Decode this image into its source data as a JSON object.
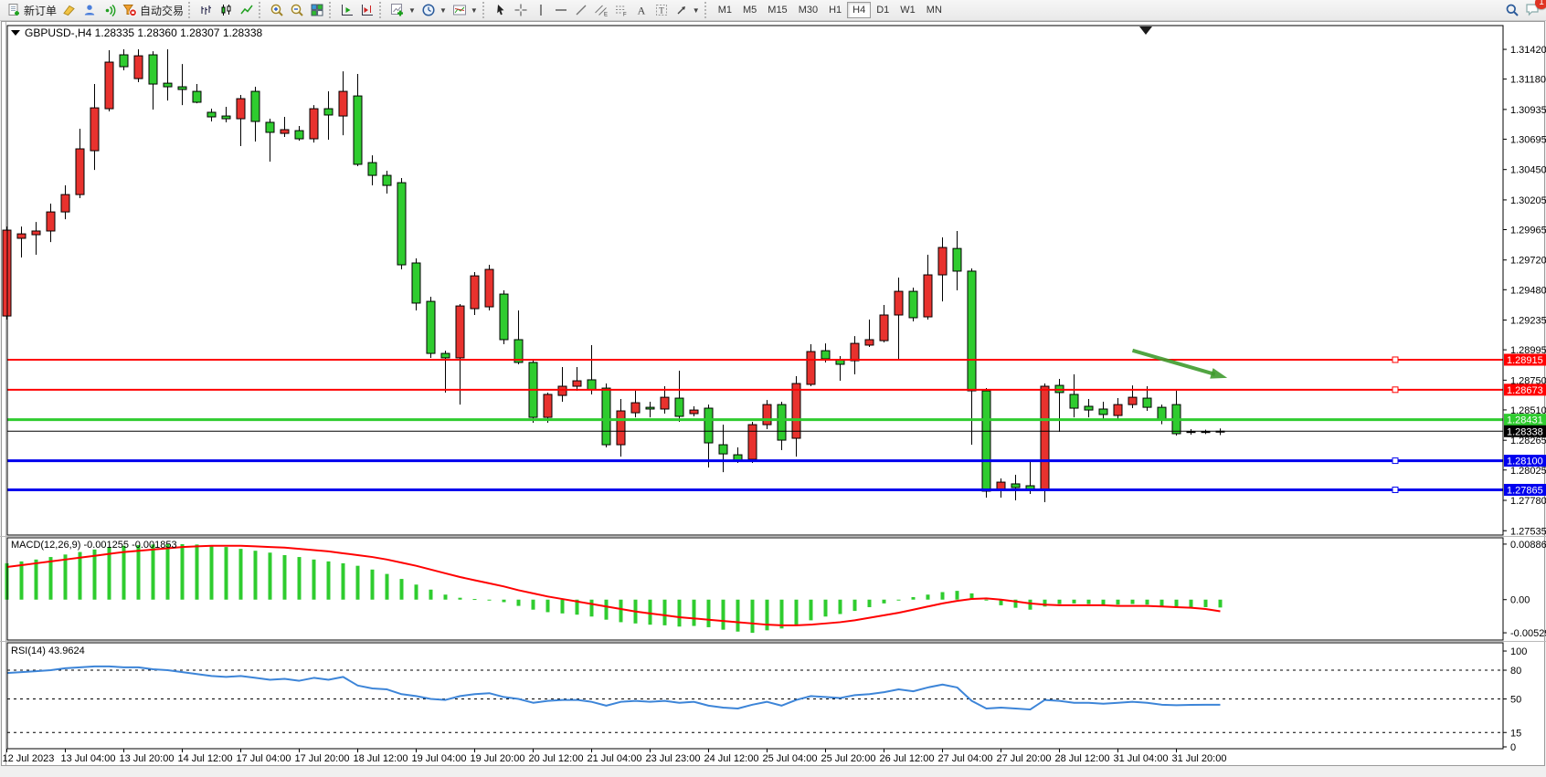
{
  "toolbar": {
    "new_order_label": "新订单",
    "autotrading_label": "自动交易",
    "timeframes": [
      "M1",
      "M5",
      "M15",
      "M30",
      "H1",
      "H4",
      "D1",
      "W1",
      "MN"
    ],
    "active_timeframe": "H4",
    "notification_badge": "1",
    "icon_names": [
      "new-order-icon",
      "metaeditor-icon",
      "profiles-icon",
      "signals-icon",
      "autotrading-icon",
      "bar-chart-icon",
      "candlestick-chart-icon",
      "line-chart-icon",
      "zoom-in-icon",
      "zoom-out-icon",
      "tile-windows-icon",
      "auto-scroll-icon",
      "chart-shift-icon",
      "indicators-icon",
      "periods-clock-icon",
      "templates-icon",
      "cursor-icon",
      "crosshair-icon",
      "vertical-line-icon",
      "horizontal-line-icon",
      "trendline-icon",
      "channel-icon",
      "fibonacci-icon",
      "text-icon",
      "label-icon",
      "arrow-shapes-icon",
      "search-icon",
      "chat-icon"
    ]
  },
  "chart": {
    "title_symbol": "GBPUSD-,H4",
    "title_ohlc": "1.28335 1.28360 1.28307 1.28338"
  },
  "chart_data": [
    {
      "type": "candlestick",
      "title": "GBPUSD-,H4",
      "symbol": "GBPUSD-",
      "timeframe": "H4",
      "grid": false,
      "legend_position": "none",
      "colors": {
        "bull": "#e8322e",
        "bear": "#2fcc2f",
        "wick": "#000000",
        "outline": "#000000"
      },
      "ylim": [
        1.275,
        1.31612
      ],
      "y_ticks": [
        "1.31420",
        "1.31180",
        "1.30935",
        "1.30695",
        "1.30450",
        "1.30205",
        "1.29965",
        "1.29720",
        "1.29480",
        "1.29235",
        "1.28995",
        "1.28750",
        "1.28510",
        "1.28265",
        "1.28025",
        "1.27780",
        "1.27535"
      ],
      "x_labels": [
        "12 Jul 2023",
        "13 Jul 04:00",
        "13 Jul 20:00",
        "14 Jul 12:00",
        "17 Jul 04:00",
        "17 Jul 20:00",
        "18 Jul 12:00",
        "19 Jul 04:00",
        "19 Jul 20:00",
        "20 Jul 12:00",
        "21 Jul 04:00",
        "23 Jul 23:00",
        "24 Jul 12:00",
        "25 Jul 04:00",
        "25 Jul 20:00",
        "26 Jul 12:00",
        "27 Jul 04:00",
        "27 Jul 20:00",
        "28 Jul 12:00",
        "31 Jul 04:00",
        "31 Jul 20:00"
      ],
      "label_every_n_bars": 4,
      "current_bar": {
        "open": 1.28335,
        "high": 1.2836,
        "low": 1.28307,
        "close": 1.28338
      },
      "candles": [
        [
          1.29268,
          1.2999,
          1.29239,
          1.29961
        ],
        [
          1.29895,
          1.2999,
          1.2974,
          1.29931
        ],
        [
          1.29924,
          1.30027,
          1.29762,
          1.29954
        ],
        [
          1.29954,
          1.30175,
          1.29865,
          1.30108
        ],
        [
          1.30108,
          1.30322,
          1.30049,
          1.30248
        ],
        [
          1.30248,
          1.30779,
          1.30219,
          1.30617
        ],
        [
          1.30602,
          1.3114,
          1.30447,
          1.30948
        ],
        [
          1.30941,
          1.31413,
          1.30919,
          1.31317
        ],
        [
          1.31376,
          1.3142,
          1.31251,
          1.3128
        ],
        [
          1.31184,
          1.3142,
          1.31155,
          1.31368
        ],
        [
          1.31376,
          1.31405,
          1.30934,
          1.3114
        ],
        [
          1.31147,
          1.3142,
          1.31007,
          1.31118
        ],
        [
          1.31118,
          1.31302,
          1.3097,
          1.31096
        ],
        [
          1.31081,
          1.3114,
          1.30985,
          1.30993
        ],
        [
          1.30912,
          1.30941,
          1.30838,
          1.30875
        ],
        [
          1.30882,
          1.30956,
          1.30831,
          1.3086
        ],
        [
          1.3086,
          1.31052,
          1.30639,
          1.31022
        ],
        [
          1.31081,
          1.31118,
          1.30676,
          1.30838
        ],
        [
          1.30831,
          1.3086,
          1.30514,
          1.3075
        ],
        [
          1.30742,
          1.30875,
          1.30713,
          1.30772
        ],
        [
          1.30764,
          1.30801,
          1.30683,
          1.30698
        ],
        [
          1.30698,
          1.3097,
          1.30668,
          1.30941
        ],
        [
          1.30941,
          1.31081,
          1.30691,
          1.3089
        ],
        [
          1.30882,
          1.31243,
          1.30727,
          1.31081
        ],
        [
          1.31044,
          1.31221,
          1.30477,
          1.30492
        ],
        [
          1.30506,
          1.30565,
          1.30322,
          1.30403
        ],
        [
          1.30403,
          1.3044,
          1.30256,
          1.30322
        ],
        [
          1.30344,
          1.30381,
          1.29644,
          1.29681
        ],
        [
          1.29696,
          1.29733,
          1.29313,
          1.29372
        ],
        [
          1.29386,
          1.29423,
          1.2893,
          1.28966
        ],
        [
          1.28966,
          1.28988,
          1.2865,
          1.2893
        ],
        [
          1.2893,
          1.29364,
          1.28553,
          1.29349
        ],
        [
          1.29327,
          1.29622,
          1.29276,
          1.29592
        ],
        [
          1.29342,
          1.29681,
          1.29313,
          1.29644
        ],
        [
          1.29445,
          1.29475,
          1.2904,
          1.29077
        ],
        [
          1.29077,
          1.29313,
          1.28878,
          1.28893
        ],
        [
          1.28893,
          1.28915,
          1.28406,
          1.2845
        ],
        [
          1.2845,
          1.2865,
          1.28406,
          1.28635
        ],
        [
          1.28627,
          1.28856,
          1.28576,
          1.28701
        ],
        [
          1.28701,
          1.28856,
          1.28664,
          1.28745
        ],
        [
          1.28753,
          1.29033,
          1.28635,
          1.28672
        ],
        [
          1.28686,
          1.28723,
          1.28207,
          1.28229
        ],
        [
          1.28229,
          1.28598,
          1.28133,
          1.28502
        ],
        [
          1.28487,
          1.28664,
          1.2845,
          1.28568
        ],
        [
          1.28531,
          1.28576,
          1.2845,
          1.28517
        ],
        [
          1.28517,
          1.28701,
          1.2848,
          1.28612
        ],
        [
          1.28605,
          1.28826,
          1.28414,
          1.28458
        ],
        [
          1.2848,
          1.28539,
          1.28458,
          1.28509
        ],
        [
          1.28524,
          1.28553,
          1.28045,
          1.28244
        ],
        [
          1.28229,
          1.28391,
          1.28008,
          1.28155
        ],
        [
          1.28148,
          1.28207,
          1.28082,
          1.28096
        ],
        [
          1.28111,
          1.28414,
          1.28082,
          1.28391
        ],
        [
          1.28391,
          1.2859,
          1.28355,
          1.28553
        ],
        [
          1.28553,
          1.28576,
          1.28185,
          1.28266
        ],
        [
          1.28281,
          1.28782,
          1.28133,
          1.28723
        ],
        [
          1.28716,
          1.2904,
          1.28701,
          1.28981
        ],
        [
          1.28988,
          1.29047,
          1.28893,
          1.28922
        ],
        [
          1.28915,
          1.28944,
          1.28745,
          1.28878
        ],
        [
          1.28907,
          1.29106,
          1.28797,
          1.29047
        ],
        [
          1.29033,
          1.29239,
          1.29018,
          1.29077
        ],
        [
          1.29069,
          1.29357,
          1.29055,
          1.29276
        ],
        [
          1.29276,
          1.29578,
          1.28922,
          1.29467
        ],
        [
          1.29467,
          1.29497,
          1.29224,
          1.29254
        ],
        [
          1.29261,
          1.29762,
          1.29239,
          1.296
        ],
        [
          1.296,
          1.29902,
          1.29386,
          1.29821
        ],
        [
          1.29813,
          1.29954,
          1.29475,
          1.2963
        ],
        [
          1.2963,
          1.29652,
          1.28229,
          1.28664
        ],
        [
          1.28664,
          1.28686,
          1.27802,
          1.27854
        ],
        [
          1.27861,
          1.27957,
          1.27802,
          1.27927
        ],
        [
          1.27913,
          1.27986,
          1.2778,
          1.27883
        ],
        [
          1.27898,
          1.28096,
          1.27832,
          1.27861
        ],
        [
          1.27861,
          1.28723,
          1.27765,
          1.28701
        ],
        [
          1.28708,
          1.2876,
          1.28333,
          1.2865
        ],
        [
          1.28635,
          1.28797,
          1.2845,
          1.28524
        ],
        [
          1.28539,
          1.28598,
          1.2845,
          1.28509
        ],
        [
          1.28517,
          1.28576,
          1.28428,
          1.28473
        ],
        [
          1.28465,
          1.28605,
          1.28428,
          1.28553
        ],
        [
          1.28553,
          1.28708,
          1.28524,
          1.28612
        ],
        [
          1.28605,
          1.28701,
          1.28502,
          1.28531
        ],
        [
          1.28531,
          1.28553,
          1.28394,
          1.28431
        ],
        [
          1.28553,
          1.28664,
          1.28303,
          1.28318
        ],
        [
          1.2833,
          1.28355,
          1.2831,
          1.28335
        ],
        [
          1.28335,
          1.2835,
          1.28315,
          1.28332
        ],
        [
          1.28335,
          1.2836,
          1.28307,
          1.28338
        ]
      ],
      "hlines": [
        {
          "price": 1.28915,
          "label": "1.28915",
          "color": "#ff0000",
          "width": 2,
          "handle": true
        },
        {
          "price": 1.28673,
          "label": "1.28673",
          "color": "#ff0000",
          "width": 2,
          "handle": true
        },
        {
          "price": 1.28431,
          "label": "1.28431",
          "color": "#2fcc2f",
          "width": 3,
          "handle": false
        },
        {
          "price": 1.28338,
          "label": "1.28338",
          "color": "#000000",
          "width": 1,
          "handle": false,
          "is_price_line": true
        },
        {
          "price": 1.281,
          "label": "1.28100",
          "color": "#0000ee",
          "width": 3,
          "handle": true
        },
        {
          "price": 1.27865,
          "label": "1.27865",
          "color": "#0000ee",
          "width": 3,
          "handle": true
        }
      ],
      "arrow": {
        "from_bar": 77,
        "from_price": 1.2899,
        "to_bar": 83,
        "to_price": 1.28785,
        "color": "#3f9b2e"
      }
    },
    {
      "type": "bar",
      "name": "MACD histogram",
      "label": "MACD(12,26,9)",
      "current_values": "-0.001255 -0.001853",
      "bar_color": "#2fcc2f",
      "ylim": [
        -0.00645,
        0.00987
      ],
      "y_ticks": [
        {
          "value": 0.008861,
          "label": "0.008861"
        },
        {
          "value": 0,
          "label": "0.00"
        },
        {
          "value": -0.005294,
          "label": "-0.005294"
        }
      ],
      "values": [
        0.0058,
        0.0061,
        0.0064,
        0.0068,
        0.0072,
        0.0076,
        0.008,
        0.0084,
        0.0086,
        0.0087,
        0.0088,
        0.00886,
        0.00885,
        0.0088,
        0.0086,
        0.0084,
        0.0081,
        0.0078,
        0.0075,
        0.0071,
        0.0068,
        0.0064,
        0.0061,
        0.0058,
        0.0054,
        0.0048,
        0.0041,
        0.0033,
        0.0024,
        0.0016,
        0.0008,
        0.0003,
        0.0001,
        0.0,
        -0.0004,
        -0.001,
        -0.0016,
        -0.002,
        -0.0022,
        -0.0024,
        -0.0027,
        -0.0032,
        -0.0036,
        -0.0038,
        -0.004,
        -0.0041,
        -0.0043,
        -0.0042,
        -0.0044,
        -0.0048,
        -0.0051,
        -0.0053,
        -0.0049,
        -0.0046,
        -0.004,
        -0.0033,
        -0.0027,
        -0.0023,
        -0.0018,
        -0.0012,
        -0.0006,
        0.0,
        0.0004,
        0.0008,
        0.0012,
        0.0014,
        0.001,
        0.0,
        -0.0009,
        -0.0013,
        -0.0016,
        -0.0011,
        -0.0007,
        -0.0006,
        -0.0007,
        -0.0008,
        -0.0008,
        -0.0007,
        -0.0008,
        -0.001,
        -0.0012,
        -0.0012,
        -0.0012,
        -0.001255
      ],
      "signal_line": {
        "name": "Signal",
        "color": "#ff0000",
        "values": [
          0.0052,
          0.0055,
          0.0058,
          0.0061,
          0.0064,
          0.0067,
          0.007,
          0.0073,
          0.0076,
          0.0078,
          0.008,
          0.0082,
          0.0084,
          0.0085,
          0.0086,
          0.0086,
          0.0086,
          0.0085,
          0.0084,
          0.0083,
          0.0081,
          0.0079,
          0.0077,
          0.0074,
          0.0071,
          0.0068,
          0.0064,
          0.0059,
          0.0054,
          0.0048,
          0.0042,
          0.0036,
          0.0031,
          0.0026,
          0.0021,
          0.0015,
          0.001,
          0.0005,
          0.0001,
          -0.0003,
          -0.0007,
          -0.0011,
          -0.0015,
          -0.0019,
          -0.0022,
          -0.0025,
          -0.0028,
          -0.003,
          -0.0032,
          -0.0034,
          -0.0036,
          -0.0038,
          -0.004,
          -0.0041,
          -0.0041,
          -0.004,
          -0.0038,
          -0.0036,
          -0.0033,
          -0.0029,
          -0.0025,
          -0.0021,
          -0.0016,
          -0.0011,
          -0.0006,
          -0.0002,
          0.0001,
          0.0002,
          0.0,
          -0.0003,
          -0.0006,
          -0.0008,
          -0.0009,
          -0.0009,
          -0.0009,
          -0.0009,
          -0.001,
          -0.001,
          -0.001,
          -0.0011,
          -0.0012,
          -0.0013,
          -0.0015,
          -0.001853
        ]
      }
    },
    {
      "type": "line",
      "name": "RSI",
      "label": "RSI(14)",
      "current_value": "43.9624",
      "color": "#3d85d8",
      "grid": false,
      "ylim": [
        -1.9,
        108.6
      ],
      "levels": [
        80,
        50,
        15
      ],
      "y_ticks": [
        {
          "value": 100,
          "label": "100"
        },
        {
          "value": 80,
          "label": "80"
        },
        {
          "value": 50,
          "label": "50"
        },
        {
          "value": 15,
          "label": "15"
        },
        {
          "value": 0,
          "label": "0"
        }
      ],
      "values": [
        77,
        78,
        79,
        80,
        82,
        83,
        84,
        84,
        83,
        83,
        81,
        80,
        78,
        76,
        74,
        73,
        74,
        72,
        70,
        71,
        69,
        72,
        70,
        73,
        64,
        61,
        60,
        55,
        53,
        50,
        49,
        53,
        55,
        56,
        52,
        50,
        46,
        48,
        49,
        49,
        47,
        43,
        47,
        48,
        47,
        48,
        46,
        47,
        43,
        41,
        40,
        44,
        47,
        43,
        49,
        53,
        52,
        51,
        54,
        55,
        57,
        60,
        58,
        62,
        65,
        62,
        48,
        40,
        41,
        40,
        39,
        49,
        48,
        46,
        46,
        45,
        46,
        47,
        46,
        44,
        43.5,
        43.8,
        43.9,
        43.9624
      ]
    }
  ]
}
